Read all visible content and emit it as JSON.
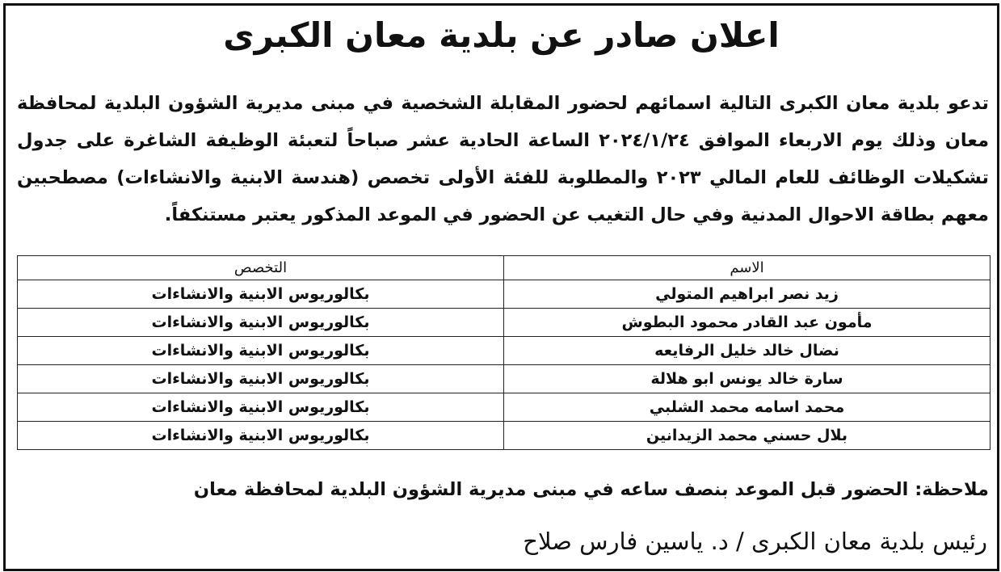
{
  "title": "اعلان صادر عن بلدية معان الكبرى",
  "body_lines": [
    "تدعو بلدية معان الكبرى التالية اسمائهم لحضور المقابلة الشخصية في مبنى مديرية الشؤون البلدية لمحافظة",
    "معان وذلك يوم الاربعاء الموافق ٢٠٢٤/١/٢٤ الساعة الحادية عشر صباحاً لتعبئة الوظيفة الشاغرة على جدول",
    "تشكيلات الوظائف للعام المالي ٢٠٢٣ والمطلوبة للفئة الأولى تخصص (هندسة الابنية والانشاءات) مصطحبين",
    "معهم بطاقة الاحوال المدنية وفي حال التغيب عن الحضور في الموعد المذكور يعتبر مستنكفاً."
  ],
  "table": {
    "headers": [
      "الاسم",
      "التخصص"
    ],
    "rows": [
      [
        "زيد نصر ابراهيم المتولي",
        "بكالوريوس الابنية والانشاءات"
      ],
      [
        "مأمون عبد القادر محمود البطوش",
        "بكالوريوس الابنية والانشاءات"
      ],
      [
        "نضال خالد خليل الرفايعه",
        "بكالوريوس الابنية والانشاءات"
      ],
      [
        "سارة خالد يونس ابو هلالة",
        "بكالوريوس الابنية والانشاءات"
      ],
      [
        "محمد اسامه محمد الشلبي",
        "بكالوريوس الابنية والانشاءات"
      ],
      [
        "بلال حسني محمد الزيدانين",
        "بكالوريوس الابنية والانشاءات"
      ]
    ]
  },
  "note": "ملاحظة: الحضور قبل الموعد بنصف ساعه في مبنى مديرية الشؤون البلدية لمحافظة معان",
  "signature": "رئيس بلدية معان الكبرى / د. ياسين فارس صلاح"
}
